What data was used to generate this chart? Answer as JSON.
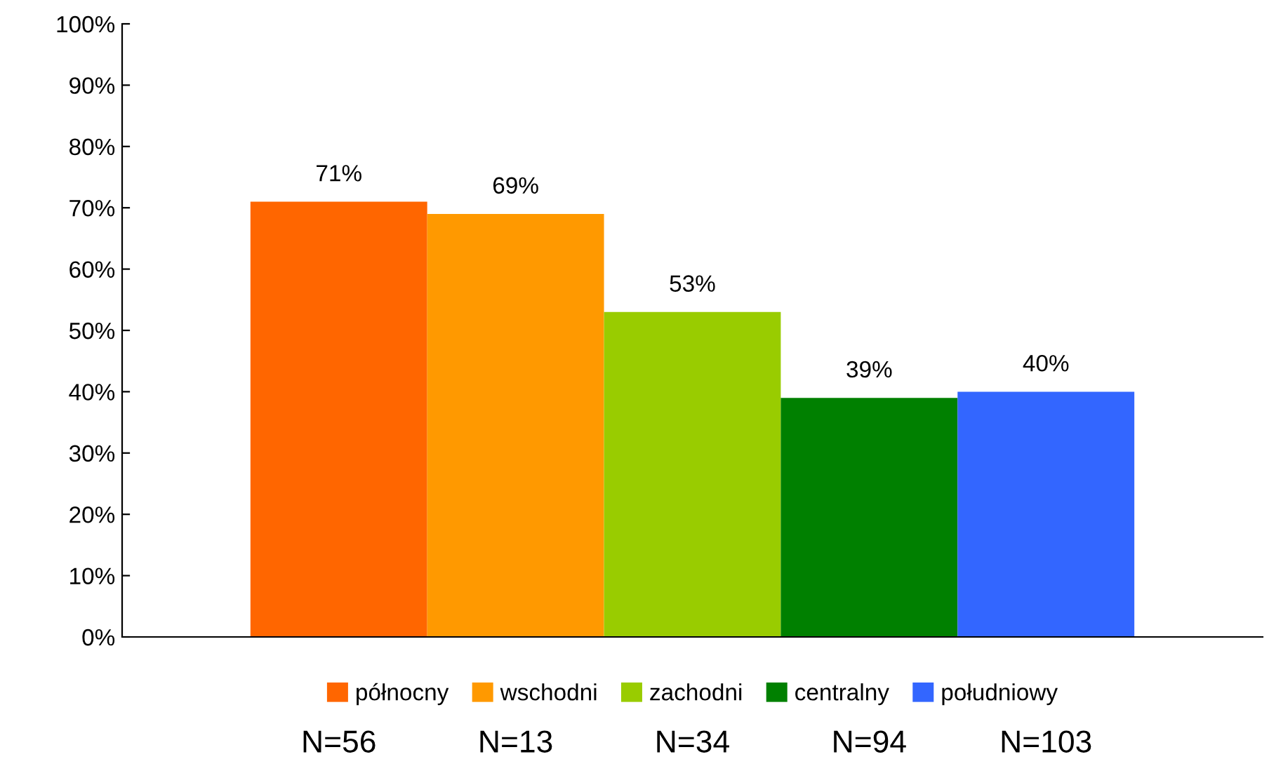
{
  "chart_data": {
    "type": "bar",
    "categories": [
      null
    ],
    "series": [
      {
        "name": "północny",
        "color": "#ff6600",
        "values": [
          71
        ],
        "value_labels": [
          "71%"
        ]
      },
      {
        "name": "wschodni",
        "color": "#ff9900",
        "values": [
          69
        ],
        "value_labels": [
          "69%"
        ]
      },
      {
        "name": "zachodni",
        "color": "#99cc00",
        "values": [
          53
        ],
        "value_labels": [
          "53%"
        ]
      },
      {
        "name": "centralny",
        "color": "#008000",
        "values": [
          39
        ],
        "value_labels": [
          "39%"
        ]
      },
      {
        "name": "południowy",
        "color": "#3366ff",
        "values": [
          40
        ],
        "value_labels": [
          "40%"
        ]
      }
    ],
    "ylim": [
      0,
      100
    ],
    "yticks": [
      {
        "value": 0,
        "label": "0%"
      },
      {
        "value": 10,
        "label": "10%"
      },
      {
        "value": 20,
        "label": "20%"
      },
      {
        "value": 30,
        "label": "30%"
      },
      {
        "value": 40,
        "label": "40%"
      },
      {
        "value": 50,
        "label": "50%"
      },
      {
        "value": 60,
        "label": "60%"
      },
      {
        "value": 70,
        "label": "70%"
      },
      {
        "value": 80,
        "label": "80%"
      },
      {
        "value": 90,
        "label": "90%"
      },
      {
        "value": 100,
        "label": "100%"
      }
    ],
    "annotations": [
      "N=56",
      "N=13",
      "N=34",
      "N=94",
      "N=103"
    ],
    "legend": "bottom",
    "grid": false
  }
}
